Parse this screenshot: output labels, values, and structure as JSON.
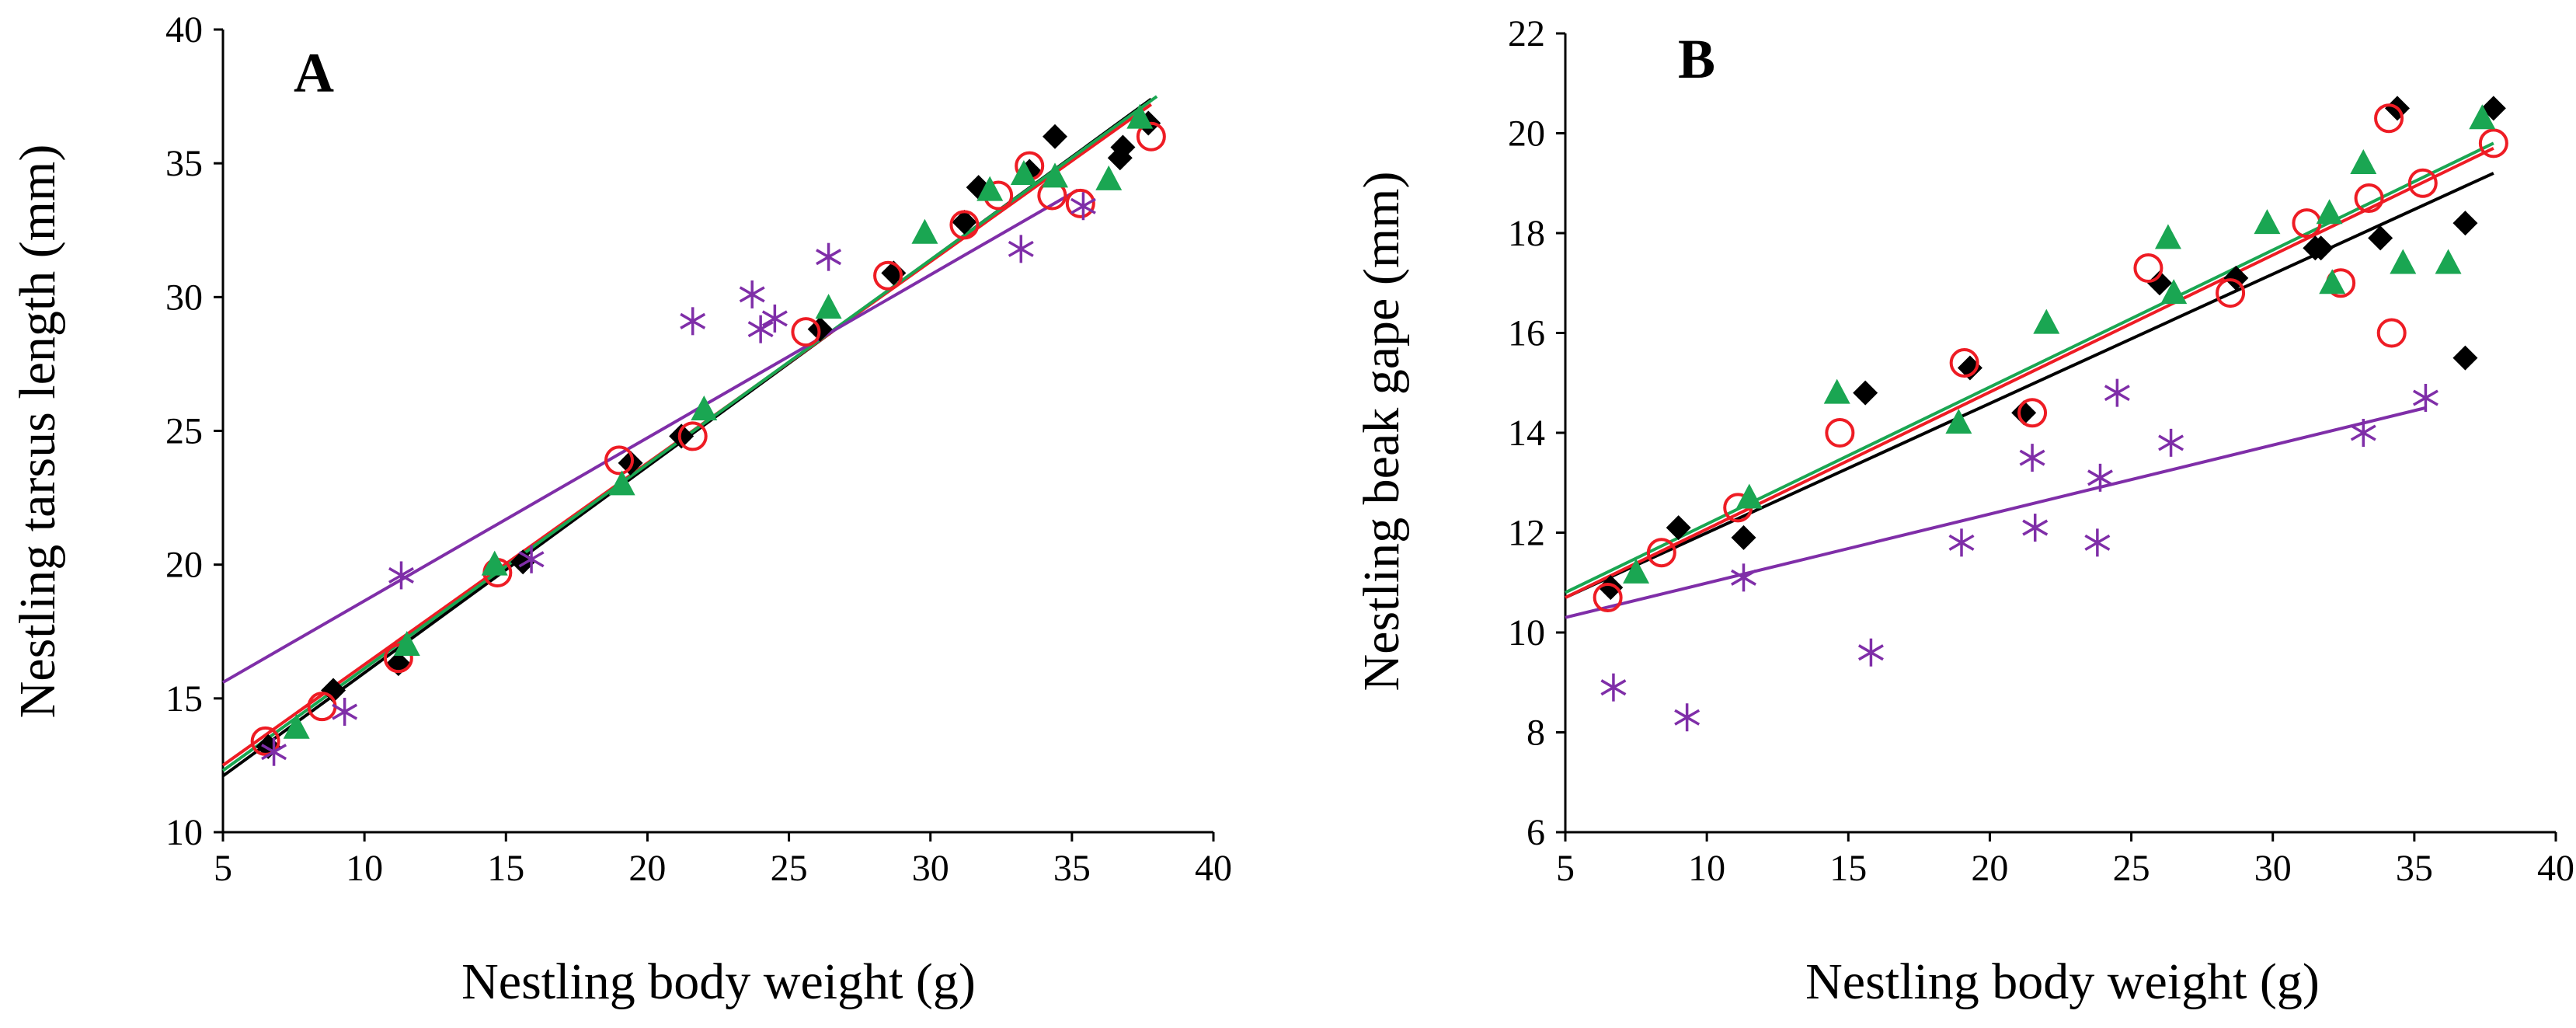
{
  "colors": {
    "black": "#000000",
    "red": "#ee1c24",
    "green": "#1aa652",
    "purple": "#7f2ea8"
  },
  "chart_data": [
    {
      "type": "scatter",
      "panel_label": "A",
      "xlabel": "Nestling body weight (g)",
      "ylabel": "Nestling tarsus length (mm)",
      "xlim": [
        5,
        40
      ],
      "ylim": [
        10,
        40
      ],
      "xticks": [
        5,
        10,
        15,
        20,
        25,
        30,
        35,
        40
      ],
      "yticks": [
        10,
        15,
        20,
        25,
        30,
        35,
        40
      ],
      "series": [
        {
          "name": "black diamonds",
          "marker": "diamond",
          "color": "#000000",
          "x": [
            6.6,
            8.9,
            11.2,
            15.6,
            19.4,
            21.2,
            26.1,
            28.7,
            31.2,
            31.7,
            33.5,
            34.4,
            36.7,
            36.8,
            37.7
          ],
          "y": [
            13.2,
            15.3,
            16.3,
            20.1,
            23.8,
            24.8,
            28.8,
            30.9,
            32.8,
            34.1,
            34.7,
            36.0,
            35.2,
            35.6,
            36.5
          ],
          "fit": [
            [
              5,
              12.1
            ],
            [
              37.8,
              37.4
            ]
          ]
        },
        {
          "name": "red circles",
          "marker": "circle",
          "color": "#ee1c24",
          "x": [
            6.5,
            8.5,
            11.2,
            14.7,
            19.0,
            21.6,
            25.6,
            28.5,
            31.2,
            32.4,
            33.5,
            34.3,
            35.3,
            37.8
          ],
          "y": [
            13.4,
            14.7,
            16.5,
            19.7,
            23.9,
            24.8,
            28.7,
            30.8,
            32.7,
            33.8,
            34.9,
            33.8,
            33.5,
            36.0
          ],
          "fit": [
            [
              5,
              12.5
            ],
            [
              37.8,
              37.2
            ]
          ]
        },
        {
          "name": "green triangles",
          "marker": "triangle",
          "color": "#1aa652",
          "x": [
            7.6,
            11.5,
            14.6,
            19.1,
            22.0,
            26.4,
            29.8,
            32.1,
            33.3,
            34.4,
            36.3,
            37.4
          ],
          "y": [
            13.9,
            17.0,
            20.0,
            23.0,
            25.8,
            29.6,
            32.4,
            34.0,
            34.6,
            34.5,
            34.4,
            36.7
          ],
          "fit": [
            [
              5,
              12.3
            ],
            [
              38.0,
              37.5
            ]
          ]
        },
        {
          "name": "purple asterisks",
          "marker": "asterisk",
          "color": "#7f2ea8",
          "x": [
            6.8,
            9.3,
            11.3,
            15.9,
            21.6,
            23.7,
            24.0,
            24.5,
            26.4,
            33.2,
            35.4
          ],
          "y": [
            13.0,
            14.5,
            19.6,
            20.2,
            29.1,
            30.1,
            28.8,
            29.2,
            31.5,
            31.8,
            33.4
          ],
          "fit": [
            [
              5,
              15.6
            ],
            [
              35.2,
              34.0
            ]
          ]
        }
      ]
    },
    {
      "type": "scatter",
      "panel_label": "B",
      "xlabel": "Nestling body weight (g)",
      "ylabel": "Nestling beak gape (mm)",
      "xlim": [
        5,
        40
      ],
      "ylim": [
        6,
        22
      ],
      "xticks": [
        5,
        10,
        15,
        20,
        25,
        30,
        35,
        40
      ],
      "yticks": [
        6,
        8,
        10,
        12,
        14,
        16,
        18,
        20,
        22
      ],
      "series": [
        {
          "name": "black diamonds",
          "marker": "diamond",
          "color": "#000000",
          "x": [
            6.6,
            9.0,
            11.3,
            15.6,
            19.3,
            21.2,
            26.0,
            28.7,
            31.5,
            31.7,
            33.8,
            34.4,
            36.8,
            36.8,
            37.8
          ],
          "y": [
            10.9,
            12.1,
            11.9,
            14.8,
            15.3,
            14.4,
            17.0,
            17.1,
            17.7,
            17.7,
            17.9,
            20.5,
            18.2,
            15.5,
            20.5
          ],
          "fit": [
            [
              5,
              10.7
            ],
            [
              37.8,
              19.2
            ]
          ]
        },
        {
          "name": "red circles",
          "marker": "circle",
          "color": "#ee1c24",
          "x": [
            6.5,
            8.4,
            11.1,
            14.7,
            19.1,
            21.5,
            25.6,
            28.5,
            31.2,
            32.4,
            33.4,
            34.1,
            34.2,
            35.3,
            37.8
          ],
          "y": [
            10.7,
            11.6,
            12.5,
            14.0,
            15.4,
            14.4,
            17.3,
            16.8,
            18.2,
            17.0,
            18.7,
            20.3,
            16.0,
            19.0,
            19.8
          ],
          "fit": [
            [
              5,
              10.7
            ],
            [
              37.8,
              19.7
            ]
          ]
        },
        {
          "name": "green triangles",
          "marker": "triangle",
          "color": "#1aa652",
          "x": [
            7.5,
            11.5,
            14.6,
            18.9,
            22.0,
            26.3,
            26.5,
            29.8,
            32.0,
            32.1,
            33.2,
            34.6,
            36.2,
            37.4
          ],
          "y": [
            11.2,
            12.7,
            14.8,
            14.2,
            16.2,
            17.9,
            16.8,
            18.2,
            18.4,
            17.0,
            19.4,
            17.4,
            17.4,
            20.3
          ],
          "fit": [
            [
              5,
              10.8
            ],
            [
              37.8,
              19.8
            ]
          ]
        },
        {
          "name": "purple asterisks",
          "marker": "asterisk",
          "color": "#7f2ea8",
          "x": [
            6.7,
            9.3,
            11.3,
            15.8,
            19.0,
            21.6,
            21.5,
            23.8,
            23.9,
            24.5,
            26.4,
            33.2,
            35.4
          ],
          "y": [
            8.9,
            8.3,
            11.1,
            9.6,
            11.8,
            12.1,
            13.5,
            11.8,
            13.1,
            14.8,
            13.8,
            14.0,
            14.7
          ],
          "fit": [
            [
              5,
              10.3
            ],
            [
              35.4,
              14.5
            ]
          ]
        }
      ]
    }
  ]
}
